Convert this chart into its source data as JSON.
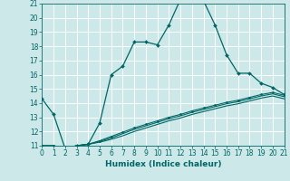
{
  "xlabel": "Humidex (Indice chaleur)",
  "background_color": "#cce8e8",
  "grid_color": "#ffffff",
  "line_color": "#006666",
  "xlim": [
    0,
    21
  ],
  "ylim": [
    11,
    21
  ],
  "x_ticks": [
    0,
    1,
    2,
    3,
    4,
    5,
    6,
    7,
    8,
    9,
    10,
    11,
    12,
    13,
    14,
    15,
    16,
    17,
    18,
    19,
    20,
    21
  ],
  "y_ticks": [
    11,
    12,
    13,
    14,
    15,
    16,
    17,
    18,
    19,
    20,
    21
  ],
  "line1_x": [
    0,
    1,
    2,
    3,
    4,
    5,
    6,
    7,
    8,
    9,
    10,
    11,
    12,
    13,
    14,
    15,
    16,
    17,
    18,
    19,
    20,
    21
  ],
  "line1_y": [
    14.3,
    13.2,
    10.8,
    11.0,
    11.1,
    12.6,
    16.0,
    16.6,
    18.3,
    18.3,
    18.1,
    19.5,
    21.3,
    21.5,
    21.2,
    19.5,
    17.4,
    16.1,
    16.1,
    15.4,
    15.1,
    14.6
  ],
  "line2_x": [
    0,
    1,
    2,
    3,
    4,
    5,
    6,
    7,
    8,
    9,
    10,
    11,
    12,
    13,
    14,
    15,
    16,
    17,
    18,
    19,
    20,
    21
  ],
  "line2_y": [
    11.0,
    11.0,
    10.8,
    11.0,
    11.1,
    11.35,
    11.65,
    11.95,
    12.25,
    12.5,
    12.75,
    13.0,
    13.2,
    13.45,
    13.65,
    13.85,
    14.05,
    14.2,
    14.4,
    14.6,
    14.75,
    14.55
  ],
  "line3_x": [
    0,
    1,
    2,
    3,
    4,
    5,
    6,
    7,
    8,
    9,
    10,
    11,
    12,
    13,
    14,
    15,
    16,
    17,
    18,
    19,
    20,
    21
  ],
  "line3_y": [
    11.0,
    11.0,
    10.8,
    11.0,
    11.1,
    11.3,
    11.55,
    11.85,
    12.15,
    12.4,
    12.65,
    12.9,
    13.1,
    13.35,
    13.55,
    13.75,
    13.95,
    14.1,
    14.3,
    14.5,
    14.65,
    14.45
  ],
  "line4_x": [
    0,
    1,
    2,
    3,
    4,
    5,
    6,
    7,
    8,
    9,
    10,
    11,
    12,
    13,
    14,
    15,
    16,
    17,
    18,
    19,
    20,
    21
  ],
  "line4_y": [
    11.0,
    11.0,
    10.8,
    11.0,
    11.1,
    11.25,
    11.45,
    11.7,
    12.0,
    12.25,
    12.5,
    12.75,
    12.95,
    13.2,
    13.4,
    13.6,
    13.8,
    13.95,
    14.15,
    14.35,
    14.5,
    14.3
  ]
}
